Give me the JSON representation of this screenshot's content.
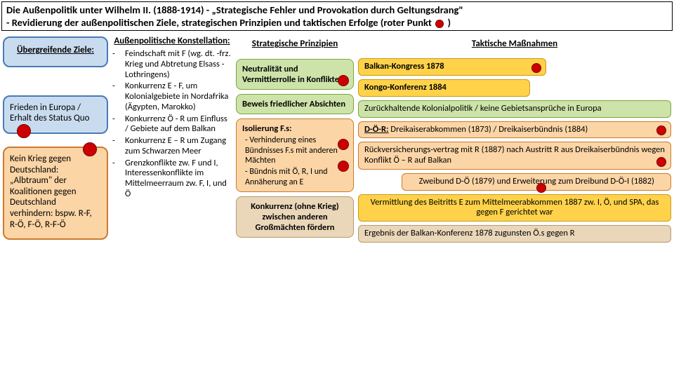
{
  "title_line1": "Die Außenpolitik unter Wilhelm II. (1888-1914) - „Strategische Fehler und Provokation durch Geltungsdrang\"",
  "title_line2a": "- Revidierung der außenpolitischen Ziele, strategischen Prinzipien und taktischen Erfolge (roter Punkt",
  "title_line2b": " )",
  "colors": {
    "red_dot_fill": "#cc0000",
    "red_dot_border": "#7a0000",
    "blue_fill": "#c9dcef",
    "blue_border": "#4a7ab5",
    "orange_fill": "#fbd5a6",
    "orange_border": "#cc7a2e",
    "green_fill": "#cde3aa",
    "green_border": "#7aa63a",
    "yellow_fill": "#ffd24a",
    "yellow_border": "#c9991f",
    "beige_fill": "#ead6b8",
    "beige_border": "#b89a6e"
  },
  "col1": {
    "header": "Übergreifende Ziele:",
    "box1": "Frieden in Europa / Erhalt des Status Quo",
    "box2": "Kein Krieg gegen Deutschland: „Albtraum\" der Koalitionen gegen Deutschland verhindern: bspw. R-F, R-Ö, F-Ö, R-F-Ö"
  },
  "col2": {
    "header": "Außenpolitische Konstellation:",
    "items": [
      "Feindschaft mit F (wg. dt. -frz. Krieg und Abtretung Elsass -Lothringens)",
      "Konkurrenz E - F, um Kolonialgebiete in Nordafrika (Ägypten, Marokko)",
      "Konkurrenz Ö - R um Einfluss / Gebiete auf dem Balkan",
      "Konkurrenz E – R um Zugang zum Schwarzen Meer",
      "Grenzkonflikte zw. F und I, Interessenkonflikte im Mittelmeerraum zw. F, I, und Ö"
    ]
  },
  "col3": {
    "header": "Strategische Prinzipien",
    "box1": "Neutralität und Vermittlerrolle in Konflikten",
    "box2": "Beweis friedlicher Absichten",
    "box3_title": "Isolierung F.s:",
    "box3_a": "- Verhinderung eines Bündnisses  F.s mit anderen Mächten",
    "box3_b": "- Bündnis mit Ö, R, I und Annäherung an E",
    "box4": "Konkurrenz (ohne Krieg)  zwischen anderen Großmächten fördern"
  },
  "col4": {
    "header": "Taktische Maßnahmen",
    "b1": "Balkan-Kongress 1878",
    "b2": "Kongo-Konferenz 1884",
    "b3": "Zurückhaltende Kolonialpolitik / keine Gebietsansprüche in Europa",
    "b4_prefix": "D-Ö-R:",
    "b4_rest": " Dreikaiserabkommen (1873) / Dreikaiserbündnis (1884)",
    "b5": "Rückversicherungs-vertrag mit R (1887) nach Austritt R aus Dreikaiserbündnis wegen Konflikt Ö – R auf Balkan",
    "b6": "Zweibund D-Ö (1879) und Erweiterung zum Dreibund D-Ö-I (1882)",
    "b7": "Vermittlung des Beitritts E zum Mittelmeerabkommen 1887 zw. I, Ö, und SPA, das gegen F gerichtet war",
    "b8": "Ergebnis der Balkan-Konferenz 1878 zugunsten Ö.s gegen R"
  }
}
